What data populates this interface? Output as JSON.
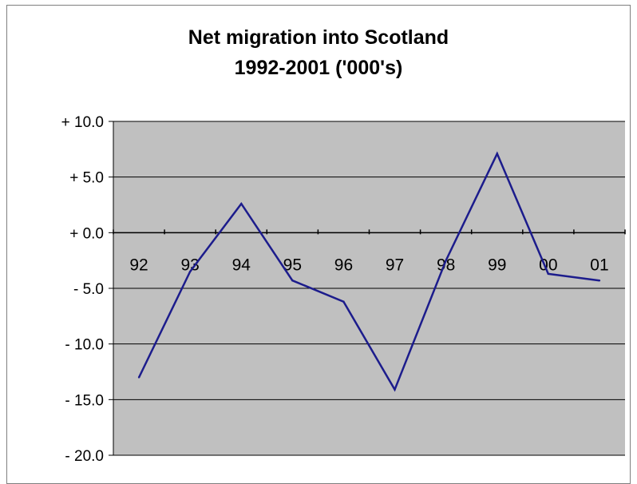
{
  "chart_data": {
    "type": "line",
    "title_line1": "Net migration into Scotland",
    "title_line2": "1992-2001 ('000's)",
    "categories": [
      "92",
      "93",
      "94",
      "95",
      "96",
      "97",
      "98",
      "99",
      "00",
      "01"
    ],
    "series": [
      {
        "values": [
          -13.0,
          -3.5,
          2.6,
          -4.3,
          -6.2,
          -14.1,
          -2.5,
          7.1,
          -3.7,
          -4.3
        ]
      }
    ],
    "ylim": [
      -20,
      10
    ],
    "yticks": [
      10,
      5,
      0,
      -5,
      -10,
      -15,
      -20
    ],
    "ytick_labels": [
      "+ 10.0",
      "+ 5.0",
      "+ 0.0",
      "- 5.0",
      "- 10.0",
      "- 15.0",
      "- 20.0"
    ],
    "grid": true,
    "colors": {
      "plot_bg": "#c0c0c0",
      "line": "#1c1c8c",
      "grid": "#000000"
    }
  }
}
